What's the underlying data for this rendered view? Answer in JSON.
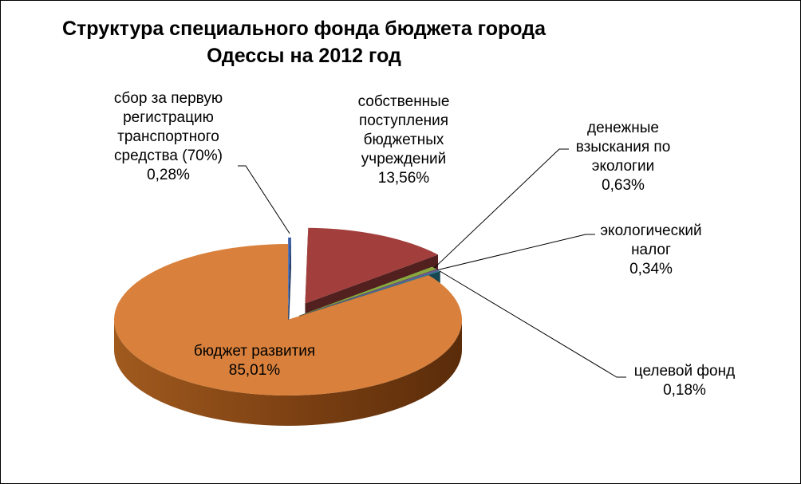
{
  "chart_data": {
    "type": "pie",
    "title_lines": [
      "Структура специального фонда бюджета города",
      "Одессы на 2012 год"
    ],
    "slices": [
      {
        "name": "сбор за первую регистрацию транспортного средства (70%)",
        "value": 0.28,
        "value_label": "0,28%",
        "label_lines": [
          "сбор за первую",
          "регистрацию",
          "транспортного",
          "средства (70%)"
        ],
        "color": "#3a5fa8"
      },
      {
        "name": "собственные поступления бюджетных учреждений",
        "value": 13.56,
        "value_label": "13,56%",
        "label_lines": [
          "собственные",
          "поступления",
          "бюджетных",
          "учреждений"
        ],
        "color": "#a23f3d"
      },
      {
        "name": "денежные взыскания по экологии",
        "value": 0.63,
        "value_label": "0,63%",
        "label_lines": [
          "денежные",
          "взыскания по",
          "экологии"
        ],
        "color": "#8aa83f"
      },
      {
        "name": "экологический налог",
        "value": 0.34,
        "value_label": "0,34%",
        "label_lines": [
          "экологический",
          "налог"
        ],
        "color": "#6d5a95"
      },
      {
        "name": "целевой фонд",
        "value": 0.18,
        "value_label": "0,18%",
        "label_lines": [
          "целевой фонд"
        ],
        "color": "#2f8ba2"
      },
      {
        "name": "бюджет развития",
        "value": 85.01,
        "value_label": "85,01%",
        "label_lines": [
          "бюджет развития"
        ],
        "color": "#d9813c"
      }
    ],
    "style": "3d-pie",
    "legend": "none"
  }
}
